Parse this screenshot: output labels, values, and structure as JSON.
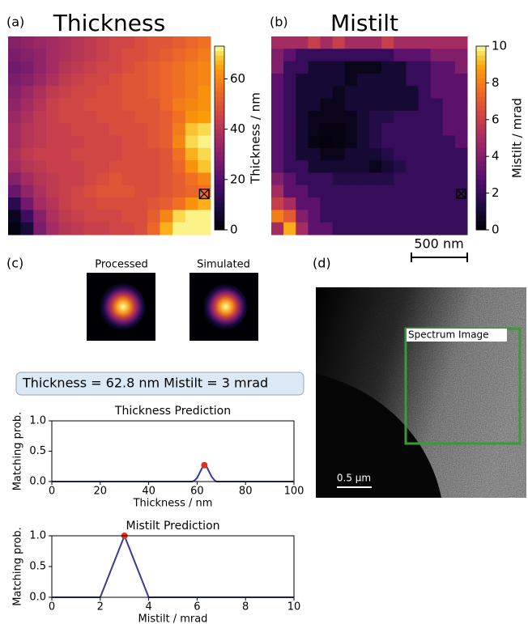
{
  "figure": {
    "panels": [
      "(a)",
      "(b)",
      "(c)",
      "(d)"
    ],
    "scale_bar": "500 nm",
    "pattern_labels": [
      "Processed",
      "Simulated"
    ],
    "result_box": "Thickness = 62.8 nm  Mistilt = 3 mrad",
    "image_region": "Spectrum Image",
    "image_scale_bar": "0.5 μm"
  },
  "chart_data": [
    {
      "type": "heatmap",
      "title": "Thickness",
      "colormap": "inferno",
      "colorbar_label": "Thickness / nm",
      "zlim": [
        0,
        73
      ],
      "zticks": [
        0,
        20,
        40,
        60
      ],
      "z": [
        [
          30,
          32,
          34,
          36,
          38,
          40,
          42,
          44,
          46,
          46,
          48,
          50,
          50,
          52,
          54,
          56
        ],
        [
          28,
          30,
          32,
          36,
          38,
          40,
          42,
          44,
          46,
          48,
          48,
          50,
          52,
          54,
          56,
          58
        ],
        [
          26,
          28,
          32,
          36,
          40,
          42,
          44,
          46,
          46,
          48,
          50,
          52,
          54,
          56,
          58,
          60
        ],
        [
          28,
          30,
          34,
          38,
          42,
          44,
          46,
          46,
          48,
          50,
          50,
          52,
          54,
          56,
          58,
          60
        ],
        [
          30,
          34,
          38,
          42,
          44,
          46,
          46,
          48,
          48,
          50,
          50,
          52,
          54,
          56,
          58,
          62
        ],
        [
          32,
          36,
          40,
          44,
          46,
          46,
          48,
          48,
          48,
          50,
          50,
          50,
          54,
          58,
          60,
          62
        ],
        [
          34,
          38,
          42,
          44,
          46,
          46,
          46,
          48,
          48,
          48,
          50,
          50,
          52,
          56,
          62,
          64
        ],
        [
          36,
          40,
          42,
          44,
          44,
          46,
          46,
          46,
          48,
          48,
          48,
          50,
          52,
          58,
          68,
          70
        ],
        [
          36,
          40,
          42,
          44,
          44,
          44,
          46,
          46,
          46,
          48,
          48,
          50,
          52,
          60,
          70,
          72
        ],
        [
          38,
          42,
          44,
          44,
          44,
          46,
          46,
          46,
          46,
          48,
          48,
          48,
          50,
          56,
          66,
          70
        ],
        [
          36,
          40,
          42,
          44,
          44,
          44,
          46,
          46,
          48,
          48,
          48,
          48,
          50,
          54,
          62,
          68
        ],
        [
          30,
          36,
          40,
          42,
          44,
          44,
          46,
          48,
          50,
          48,
          48,
          48,
          50,
          52,
          56,
          60
        ],
        [
          24,
          32,
          38,
          42,
          44,
          46,
          48,
          50,
          50,
          50,
          48,
          48,
          50,
          52,
          54,
          56
        ],
        [
          12,
          26,
          36,
          40,
          44,
          46,
          46,
          48,
          48,
          48,
          48,
          50,
          52,
          56,
          62,
          66
        ],
        [
          4,
          16,
          30,
          38,
          42,
          44,
          46,
          46,
          46,
          48,
          48,
          52,
          60,
          70,
          72,
          72
        ],
        [
          2,
          8,
          28,
          36,
          40,
          42,
          44,
          44,
          46,
          46,
          48,
          54,
          66,
          72,
          72,
          72
        ]
      ]
    },
    {
      "type": "heatmap",
      "title": "Mistilt",
      "colormap": "inferno",
      "colorbar_label": "Mistilt / mrad",
      "zlim": [
        0,
        10
      ],
      "zticks": [
        0,
        2,
        4,
        6,
        8,
        10
      ],
      "z": [
        [
          5,
          5,
          5,
          6,
          5,
          6,
          5,
          5,
          5,
          6,
          5,
          5,
          5,
          5,
          5,
          5
        ],
        [
          4,
          3,
          2,
          2,
          2,
          2,
          2,
          2,
          2,
          2,
          3,
          3,
          3,
          4,
          4,
          4
        ],
        [
          4,
          2,
          2,
          1,
          1,
          1,
          0.5,
          0.5,
          0.5,
          1,
          1,
          2,
          2,
          3,
          3,
          4
        ],
        [
          3,
          2,
          1,
          1,
          1,
          1,
          0.5,
          1,
          1,
          1,
          1,
          2,
          2,
          3,
          3,
          3
        ],
        [
          3,
          2,
          1,
          1,
          1,
          0.5,
          1,
          1,
          1,
          1,
          1,
          1,
          2,
          3,
          3,
          3
        ],
        [
          3,
          2,
          1,
          1,
          0.5,
          0.5,
          1,
          1,
          1,
          1,
          1,
          1,
          2,
          2,
          3,
          3
        ],
        [
          3,
          2,
          1,
          0.5,
          0.5,
          0.5,
          0.5,
          1,
          1.5,
          1.5,
          2,
          2,
          2,
          2,
          3,
          3
        ],
        [
          3,
          2,
          1,
          0.5,
          0.3,
          0.3,
          0.5,
          1,
          1.5,
          2,
          2,
          2,
          2,
          2,
          3,
          3
        ],
        [
          3,
          2,
          1,
          0.3,
          0.2,
          0.3,
          0.5,
          1,
          1.5,
          2,
          2,
          2,
          2,
          2,
          2,
          3
        ],
        [
          3,
          2,
          1,
          1,
          0.5,
          0.5,
          1,
          1,
          1,
          1.5,
          2,
          2,
          2,
          2,
          2,
          2
        ],
        [
          3,
          2,
          2,
          1,
          1,
          1,
          1,
          1,
          0.5,
          1,
          1.5,
          2,
          2,
          2,
          2,
          2
        ],
        [
          4,
          3,
          2,
          2,
          2,
          1.5,
          1.5,
          1.5,
          1.5,
          1.5,
          2,
          2,
          2,
          2,
          2,
          2
        ],
        [
          5,
          3,
          3,
          2,
          2,
          2,
          2,
          2,
          2,
          2,
          2,
          2,
          2,
          2,
          2,
          2
        ],
        [
          6,
          5,
          3,
          3,
          2,
          2,
          2,
          2,
          2,
          2,
          2,
          2,
          2,
          2,
          2,
          2
        ],
        [
          8,
          7,
          4,
          3,
          2,
          2,
          2,
          2,
          2,
          2,
          2,
          2,
          2,
          2,
          2,
          2
        ],
        [
          5,
          9,
          5,
          3,
          3,
          2,
          2,
          2,
          2,
          2,
          2,
          2,
          2,
          2,
          2,
          2
        ]
      ]
    },
    {
      "type": "line",
      "title": "Thickness Prediction",
      "x_label": "Thickness / nm",
      "y_label": "Matching prob.",
      "xlim": [
        0,
        100
      ],
      "ylim": [
        0,
        1
      ],
      "xticks": [
        0,
        20,
        40,
        60,
        80,
        100
      ],
      "yticks": [
        {
          "value": 0,
          "label": "0.0"
        },
        {
          "value": 0.5,
          "label": "0.5"
        },
        {
          "value": 1,
          "label": "1.0"
        }
      ],
      "x": [
        0,
        58,
        59,
        60,
        61,
        62,
        63,
        64,
        65,
        66,
        67,
        68,
        100
      ],
      "series": [
        {
          "color": "#3b3b9a",
          "values": [
            0,
            0,
            0.02,
            0.06,
            0.14,
            0.22,
            0.27,
            0.24,
            0.16,
            0.08,
            0.03,
            0,
            0
          ]
        }
      ],
      "highlight": {
        "x": 63,
        "y": 0.27,
        "color": "#e0301e"
      }
    },
    {
      "type": "line",
      "title": "Mistilt Prediction",
      "x_label": "Mistilt / mrad",
      "y_label": "Matching prob.",
      "xlim": [
        0,
        10
      ],
      "ylim": [
        0,
        1
      ],
      "xticks": [
        0,
        2,
        4,
        6,
        8,
        10
      ],
      "yticks": [
        {
          "value": 0,
          "label": "0.0"
        },
        {
          "value": 0.5,
          "label": "0.5"
        },
        {
          "value": 1,
          "label": "1.0"
        }
      ],
      "x": [
        0,
        2,
        3,
        4,
        10
      ],
      "series": [
        {
          "color": "#3b3b9a",
          "values": [
            0,
            0,
            1,
            0,
            0
          ]
        }
      ],
      "highlight": {
        "x": 3,
        "y": 1,
        "color": "#e0301e"
      }
    }
  ]
}
